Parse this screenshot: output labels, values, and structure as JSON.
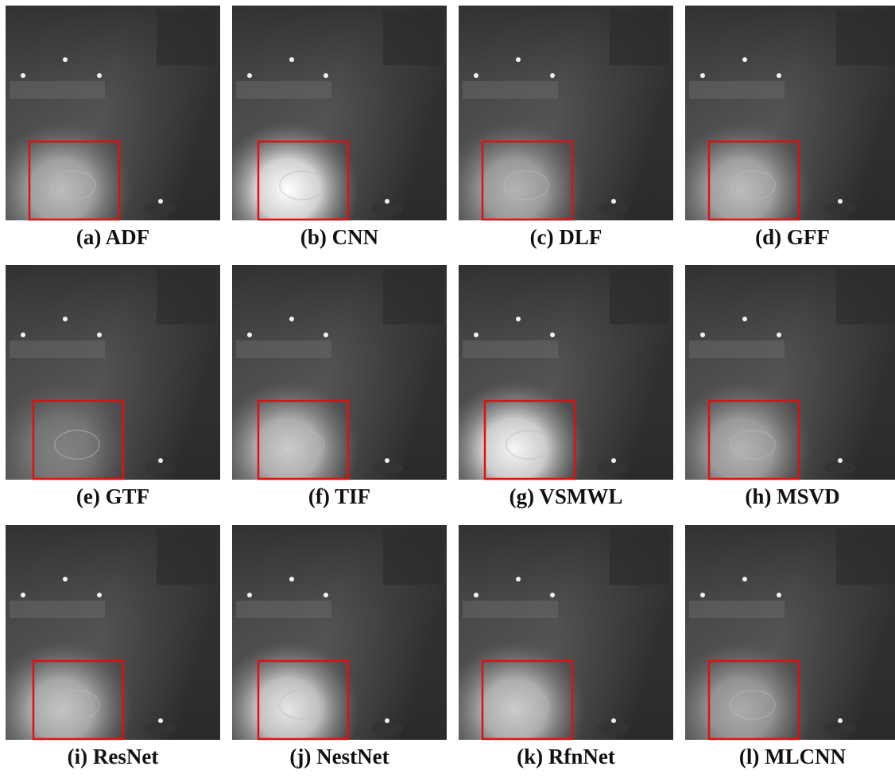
{
  "figure": {
    "panels": [
      {
        "caption": "(a) ADF"
      },
      {
        "caption": "(b) CNN"
      },
      {
        "caption": "(c) DLF"
      },
      {
        "caption": "(d) GFF"
      },
      {
        "caption": "(e) GTF"
      },
      {
        "caption": "(f) TIF"
      },
      {
        "caption": "(g) VSMWL"
      },
      {
        "caption": "(h) MSVD"
      },
      {
        "caption": "(i) ResNet"
      },
      {
        "caption": "(j) NestNet"
      },
      {
        "caption": "(k) RfnNet"
      },
      {
        "caption": "(l) MLCNN"
      }
    ]
  }
}
